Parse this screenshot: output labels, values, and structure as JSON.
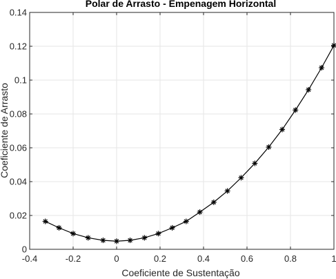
{
  "chart_data": {
    "type": "line",
    "title": "Polar de Arrasto - Empenagem Horizontal",
    "xlabel": "Coeficiente de Sustentação",
    "ylabel": "Coeficiente de Arrasto",
    "xlim": [
      -0.4,
      1
    ],
    "ylim": [
      0,
      0.14
    ],
    "xticks": [
      -0.4,
      -0.2,
      0,
      0.2,
      0.4,
      0.6,
      0.8,
      1
    ],
    "xtick_labels": [
      "-0.4",
      "-0.2",
      "0",
      "0.2",
      "0.4",
      "0.6",
      "0.8",
      "1"
    ],
    "yticks": [
      0,
      0.02,
      0.04,
      0.06,
      0.08,
      0.1,
      0.12,
      0.14
    ],
    "ytick_labels": [
      "0",
      "0.02",
      "0.04",
      "0.06",
      "0.08",
      "0.1",
      "0.12",
      "0.14"
    ],
    "grid": true,
    "legend": "none",
    "series": [
      {
        "marker": "asterisk",
        "color": "#000000",
        "x": [
          -0.328,
          -0.265,
          -0.2,
          -0.131,
          -0.062,
          0.0,
          0.062,
          0.128,
          0.192,
          0.256,
          0.32,
          0.383,
          0.447,
          0.51,
          0.573,
          0.636,
          0.7,
          0.762,
          0.823,
          0.883,
          0.943,
          1.0
        ],
        "y": [
          0.0165,
          0.0127,
          0.0093,
          0.0068,
          0.0053,
          0.0048,
          0.0053,
          0.0068,
          0.0093,
          0.0127,
          0.0165,
          0.022,
          0.0278,
          0.0345,
          0.0423,
          0.0508,
          0.0604,
          0.0708,
          0.0823,
          0.0943,
          0.1073,
          0.1205
        ]
      }
    ]
  }
}
